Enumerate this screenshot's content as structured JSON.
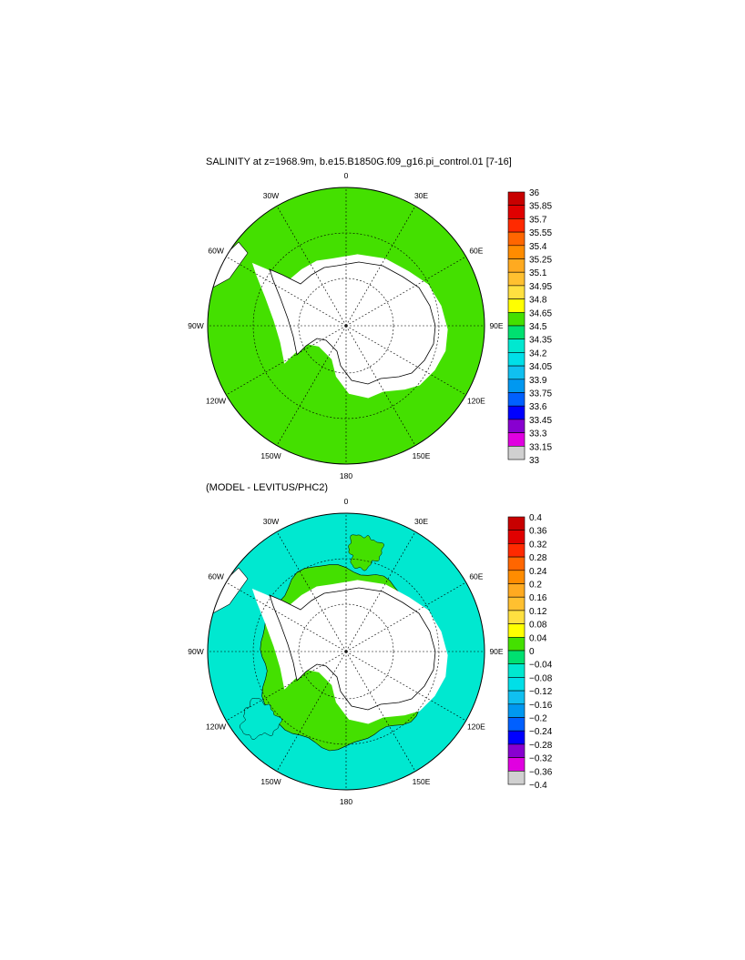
{
  "panels": [
    {
      "title": "SALINITY at z=1968.9m, b.e15.B1850G.f09_g16.pi_control.01 [7-16]",
      "fill_color": "#44e000",
      "longitude_labels": {
        "top": "0",
        "top_right": "30E",
        "right_upper": "60E",
        "right": "90E",
        "right_lower": "120E",
        "bottom_right": "150E",
        "bottom": "180",
        "bottom_left": "150W",
        "left_lower": "120W",
        "left": "90W",
        "left_upper": "60W",
        "top_left": "30W"
      },
      "colorbar": {
        "labels": [
          "36",
          "35.85",
          "35.7",
          "35.55",
          "35.4",
          "35.25",
          "35.1",
          "34.95",
          "34.8",
          "34.65",
          "34.5",
          "34.35",
          "34.2",
          "34.05",
          "33.9",
          "33.75",
          "33.6",
          "33.45",
          "33.3",
          "33.15",
          "33"
        ],
        "colors": [
          "#c80000",
          "#e00000",
          "#ff2a00",
          "#ff6600",
          "#ff8c00",
          "#ffaa20",
          "#ffc030",
          "#ffe040",
          "#ffff00",
          "#44e000",
          "#00e070",
          "#00e8d0",
          "#00dfe8",
          "#10c0f0",
          "#0098f0",
          "#0060ff",
          "#0000ff",
          "#8800d0",
          "#e000e0",
          "#d0d0d0",
          "#707070"
        ]
      }
    },
    {
      "title": "(MODEL - LEVITUS/PHC2)",
      "fill_color": "#00e8d0",
      "inner_color": "#44e000",
      "longitude_labels": {
        "top": "0",
        "top_right": "30E",
        "right_upper": "60E",
        "right": "90E",
        "right_lower": "120E",
        "bottom_right": "150E",
        "bottom": "180",
        "bottom_left": "150W",
        "left_lower": "120W",
        "left": "90W",
        "left_upper": "60W",
        "top_left": "30W"
      },
      "colorbar": {
        "labels": [
          "0.4",
          "0.36",
          "0.32",
          "0.28",
          "0.24",
          "0.2",
          "0.16",
          "0.12",
          "0.08",
          "0.04",
          "0",
          "−0.04",
          "−0.08",
          "−0.12",
          "−0.16",
          "−0.2",
          "−0.24",
          "−0.28",
          "−0.32",
          "−0.36",
          "−0.4"
        ],
        "colors": [
          "#c80000",
          "#e00000",
          "#ff2a00",
          "#ff6600",
          "#ff8c00",
          "#ffaa20",
          "#ffc030",
          "#ffe040",
          "#ffff00",
          "#44e000",
          "#00e070",
          "#00e8d0",
          "#00dfe8",
          "#10c0f0",
          "#0098f0",
          "#0060ff",
          "#0000ff",
          "#8800d0",
          "#e000e0",
          "#d0d0d0",
          "#707070"
        ]
      }
    }
  ]
}
